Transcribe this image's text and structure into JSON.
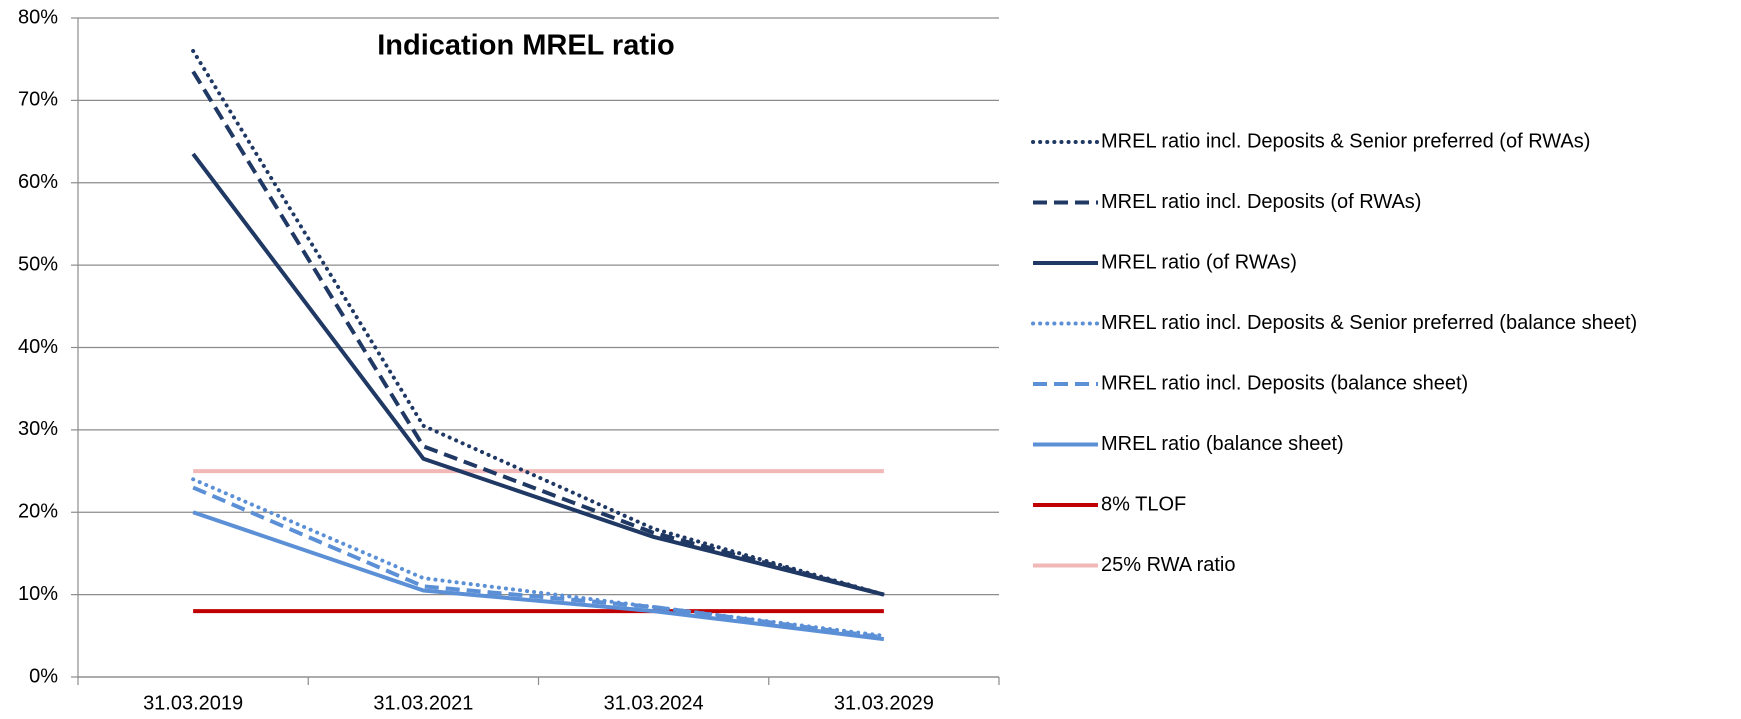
{
  "chart_data": {
    "type": "line",
    "title": "Indication MREL ratio",
    "categories": [
      "31.03.2019",
      "31.03.2021",
      "31.03.2024",
      "31.03.2029"
    ],
    "series": [
      {
        "name": "MREL ratio incl. Deposits & Senior preferred (of RWAs)",
        "color": "#1f3864",
        "dash": "dotted",
        "values": [
          76,
          30.5,
          18,
          10
        ]
      },
      {
        "name": "MREL ratio incl. Deposits (of RWAs)",
        "color": "#1f3864",
        "dash": "dashed",
        "values": [
          73.5,
          28,
          17.5,
          10
        ]
      },
      {
        "name": "MREL ratio (of RWAs)",
        "color": "#1f3864",
        "dash": "solid",
        "values": [
          63.5,
          26.5,
          17,
          10
        ]
      },
      {
        "name": "MREL ratio incl. Deposits & Senior preferred (balance sheet)",
        "color": "#5b8fd6",
        "dash": "dotted",
        "values": [
          24,
          12,
          8.5,
          5
        ]
      },
      {
        "name": "MREL ratio incl. Deposits (balance sheet)",
        "color": "#5b8fd6",
        "dash": "dashed",
        "values": [
          23,
          11,
          8.5,
          4.8
        ]
      },
      {
        "name": "MREL ratio (balance sheet)",
        "color": "#5b8fd6",
        "dash": "solid",
        "values": [
          20,
          10.5,
          8,
          4.6
        ]
      },
      {
        "name": "8% TLOF",
        "color": "#c00000",
        "dash": "solid",
        "values": [
          8,
          8,
          8,
          8
        ]
      },
      {
        "name": "25% RWA ratio",
        "color": "#f2b8b8",
        "dash": "solid",
        "values": [
          25,
          25,
          25,
          25
        ]
      }
    ],
    "ylim": [
      0,
      80
    ],
    "yticks": [
      {
        "value": 0,
        "label": "0%"
      },
      {
        "value": 10,
        "label": "10%"
      },
      {
        "value": 20,
        "label": "20%"
      },
      {
        "value": 30,
        "label": "30%"
      },
      {
        "value": 40,
        "label": "40%"
      },
      {
        "value": 50,
        "label": "50%"
      },
      {
        "value": 60,
        "label": "60%"
      },
      {
        "value": 70,
        "label": "70%"
      },
      {
        "value": 80,
        "label": "80%"
      }
    ],
    "grid": true,
    "legend": "right"
  }
}
